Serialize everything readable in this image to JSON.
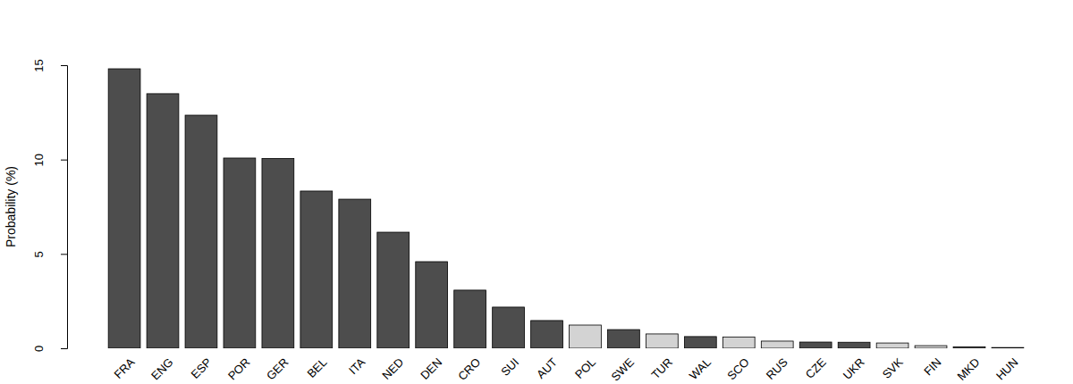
{
  "chart_data": {
    "type": "bar",
    "y_label": "Probability (%)",
    "categories": [
      "FRA",
      "ENG",
      "ESP",
      "POR",
      "GER",
      "BEL",
      "ITA",
      "NED",
      "DEN",
      "CRO",
      "SUI",
      "AUT",
      "POL",
      "SWE",
      "TUR",
      "WAL",
      "SCO",
      "RUS",
      "CZE",
      "UKR",
      "SVK",
      "FIN",
      "MKD",
      "HUN"
    ],
    "values": [
      14.81,
      13.49,
      12.35,
      10.08,
      10.06,
      8.33,
      7.9,
      6.15,
      4.59,
      3.08,
      2.18,
      1.47,
      1.23,
      0.99,
      0.76,
      0.62,
      0.6,
      0.38,
      0.33,
      0.32,
      0.28,
      0.14,
      0.08,
      0.04
    ],
    "colors": [
      "#4d4d4d",
      "#4d4d4d",
      "#4d4d4d",
      "#4d4d4d",
      "#4d4d4d",
      "#4d4d4d",
      "#4d4d4d",
      "#4d4d4d",
      "#4d4d4d",
      "#4d4d4d",
      "#4d4d4d",
      "#4d4d4d",
      "#d3d3d3",
      "#4d4d4d",
      "#d3d3d3",
      "#4d4d4d",
      "#d3d3d3",
      "#d3d3d3",
      "#4d4d4d",
      "#4d4d4d",
      "#d3d3d3",
      "#d3d3d3",
      "#4d4d4d",
      "#4d4d4d"
    ],
    "ylim": [
      0,
      15
    ],
    "yticks": [
      0,
      5,
      10,
      15
    ],
    "grid": false
  }
}
